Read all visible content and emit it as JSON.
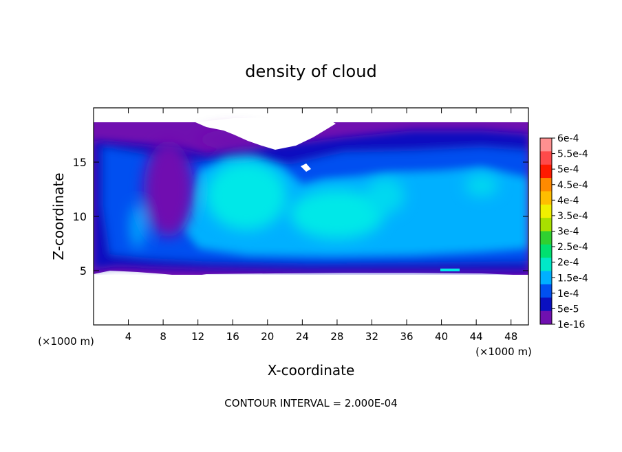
{
  "chart_data": {
    "type": "heatmap",
    "title": "density of cloud",
    "xlabel": "X-coordinate",
    "ylabel": "Z-coordinate",
    "x_unit_label": "(×1000 m)",
    "z_unit_label": "(×1000 m)",
    "footer": "CONTOUR INTERVAL = 2.000E-04",
    "xlim": [
      0,
      50
    ],
    "ylim": [
      0,
      20
    ],
    "x_ticks": [
      4,
      8,
      12,
      16,
      20,
      24,
      28,
      32,
      36,
      40,
      44,
      48
    ],
    "y_ticks": [
      5,
      10,
      15
    ],
    "grid": false,
    "legend_position": "right",
    "colorbar": {
      "labels": [
        "6e-4",
        "5.5e-4",
        "5e-4",
        "4.5e-4",
        "4e-4",
        "3.5e-4",
        "3e-4",
        "2.5e-4",
        "2e-4",
        "1.5e-4",
        "1e-4",
        "5e-5",
        "1e-16"
      ],
      "colors": [
        "#ff9090",
        "#ff4a4a",
        "#ff1a00",
        "#ff8a00",
        "#ffbe00",
        "#f0f000",
        "#a8e000",
        "#30d030",
        "#00e070",
        "#00e8c8",
        "#00b0ff",
        "#0050f0",
        "#0a10c0",
        "#7010b0"
      ]
    },
    "palette": {
      "background": "#7010b0",
      "dark_blue": "#0a10c0",
      "blue": "#0050f0",
      "light_blue": "#00b0ff",
      "cyan": "#00e8e8",
      "empty": "#ffffff"
    }
  }
}
